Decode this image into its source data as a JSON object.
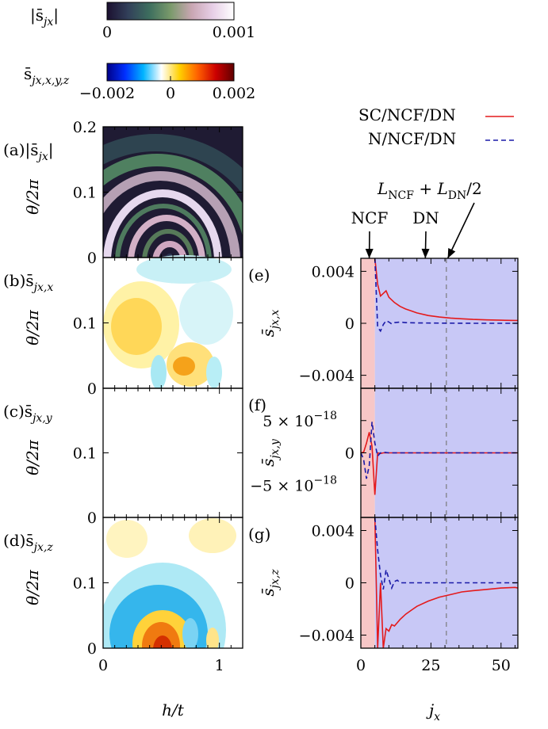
{
  "colorbars": [
    {
      "label": "|s̄",
      "label_sub": "jx",
      "label_close": "|",
      "ticks": [
        {
          "value": 0,
          "label": "0"
        },
        {
          "value": 0.001,
          "label": "0.001"
        }
      ],
      "range": [
        0,
        0.001
      ],
      "colors": [
        "#1b1030",
        "#32405a",
        "#3d6e5e",
        "#7a9a6b",
        "#c9a6b2",
        "#e7cfe7",
        "#ffffff"
      ]
    },
    {
      "label": "s̄",
      "label_sub": "jx,x,y,z",
      "ticks": [
        {
          "value": -0.002,
          "label": "−0.002"
        },
        {
          "value": 0,
          "label": "0"
        },
        {
          "value": 0.002,
          "label": "0.002"
        }
      ],
      "range": [
        -0.002,
        0.002
      ],
      "colors": [
        "#000088",
        "#0030ff",
        "#00b4ff",
        "#ffffff",
        "#ffd000",
        "#ff6000",
        "#cc0000",
        "#600000"
      ]
    }
  ],
  "heatmaps": {
    "xlabel": "h/t",
    "ylabel": "θ/2π",
    "x_ticks": [
      {
        "value": 0,
        "label": "0"
      },
      {
        "value": 1,
        "label": "1"
      }
    ],
    "xlim": [
      0,
      1.2
    ],
    "ylim": [
      0,
      0.2
    ],
    "panels": [
      {
        "id": "a",
        "tag": "(a)",
        "label": "|s̄",
        "sub": "jx",
        "close": "|",
        "y_ticks": [
          {
            "value": 0,
            "label": "0"
          },
          {
            "value": 0.1,
            "label": "0.1"
          },
          {
            "value": 0.2,
            "label": "0.2"
          }
        ]
      },
      {
        "id": "b",
        "tag": "(b)",
        "label": "s̄",
        "sub": "jx,x",
        "close": "",
        "y_ticks": [
          {
            "value": 0,
            "label": "0"
          },
          {
            "value": 0.1,
            "label": "0.1"
          }
        ]
      },
      {
        "id": "c",
        "tag": "(c)",
        "label": "s̄",
        "sub": "jx,y",
        "close": "",
        "y_ticks": [
          {
            "value": 0,
            "label": "0"
          },
          {
            "value": 0.1,
            "label": "0.1"
          }
        ]
      },
      {
        "id": "d",
        "tag": "(d)",
        "label": "s̄",
        "sub": "jx,z",
        "close": "",
        "y_ticks": [
          {
            "value": 0,
            "label": "0"
          },
          {
            "value": 0.1,
            "label": "0.1"
          }
        ]
      }
    ]
  },
  "chart_data": [
    {
      "type": "heatmap",
      "panel": "(a)",
      "description_in_units": "|s_jx| over h/t in [0,1.2] and θ/2π in [0,0.2]",
      "xlim": [
        0,
        1.2
      ],
      "ylim": [
        0,
        0.2
      ],
      "zlim": [
        0,
        0.001
      ]
    },
    {
      "type": "line",
      "panels": [
        "(e)",
        "(f)",
        "(g)"
      ],
      "xlabel": "jx",
      "xlim": [
        0,
        56
      ],
      "x_ticks": [
        {
          "value": 0,
          "label": "0"
        },
        {
          "value": 25,
          "label": "25"
        },
        {
          "value": 50,
          "label": "50"
        }
      ],
      "legend": {
        "placement": "top-right",
        "entries": [
          {
            "name": "SC/NCF/DN",
            "color": "#e41a1c",
            "dash": "solid"
          },
          {
            "name": "N/NCF/DN",
            "color": "#1a1aa8",
            "dash": "dashed"
          }
        ]
      },
      "regions": [
        {
          "name": "NCF",
          "x": [
            0,
            5
          ],
          "color": "#f7c7c7"
        },
        {
          "name": "DN",
          "x": [
            5,
            56
          ],
          "color": "#c8c8f6"
        }
      ],
      "annotations": [
        {
          "text": "NCF",
          "x": 3,
          "y_note": "arrow to top of panel e"
        },
        {
          "text": "DN",
          "x": 23,
          "y_note": "arrow to top of panel e"
        },
        {
          "text": "L",
          "sub1": "NCF",
          "mid": " + L",
          "sub2": "DN",
          "tail": "/2",
          "x": 31
        }
      ],
      "vline": 30.5,
      "subplots": [
        {
          "tag": "(e)",
          "ylabel": "s̄",
          "ysub": "jx,x",
          "ylim": [
            -0.005,
            0.005
          ],
          "y_ticks": [
            {
              "value": 0.004,
              "label": "0.004"
            },
            {
              "value": 0,
              "label": "0"
            },
            {
              "value": -0.004,
              "label": "−0.004"
            }
          ],
          "series": [
            {
              "name": "SC/NCF/DN",
              "x": [
                5,
                6,
                7,
                8,
                9,
                10,
                12,
                14,
                16,
                18,
                20,
                24,
                28,
                32,
                36,
                40,
                45,
                50,
                55,
                56
              ],
              "y": [
                0.005,
                0.003,
                0.0021,
                0.0023,
                0.0025,
                0.002,
                0.0016,
                0.0013,
                0.0011,
                0.00095,
                0.0008,
                0.0006,
                0.00048,
                0.0004,
                0.00035,
                0.0003,
                0.00026,
                0.00024,
                0.00022,
                0.00022
              ]
            },
            {
              "name": "N/NCF/DN",
              "x": [
                5,
                6,
                7,
                8,
                9,
                10,
                11,
                12,
                14,
                16,
                20,
                25,
                30,
                40,
                50,
                56
              ],
              "y": [
                0.005,
                -0.0003,
                -0.0006,
                -0.0001,
                0.0002,
                0.0001,
                -5e-05,
                5e-05,
                0.0001,
                5e-05,
                3e-05,
                2e-05,
                1e-05,
                0.0,
                0.0,
                0.0
              ]
            }
          ]
        },
        {
          "tag": "(f)",
          "ylabel": "s̄",
          "ysub": "jx,y",
          "ylim": [
            -1e-17,
            1e-17
          ],
          "y_ticks": [
            {
              "value": 5e-18,
              "label": "5 × 10",
              "exp": "−18"
            },
            {
              "value": 0,
              "label": "0"
            },
            {
              "value": -5e-18,
              "label": "−5 × 10",
              "exp": "−18"
            }
          ],
          "series": [
            {
              "name": "SC/NCF/DN",
              "x": [
                0,
                1,
                2,
                3,
                4,
                5,
                6,
                7,
                8,
                10,
                15,
                20,
                30,
                40,
                50,
                56
              ],
              "y": [
                0,
                1e-19,
                1.5e-18,
                3.2e-18,
                1e-18,
                -6.5e-18,
                0,
                -1e-19,
                0,
                0,
                0,
                0,
                0,
                0,
                0,
                0
              ]
            },
            {
              "name": "N/NCF/DN",
              "x": [
                0,
                1,
                2,
                3,
                4,
                5,
                6,
                7,
                8,
                10,
                15,
                20,
                30,
                40,
                50,
                56
              ],
              "y": [
                0,
                -1e-18,
                -4e-18,
                -2e-18,
                4.8e-18,
                1.5e-18,
                -5e-19,
                0,
                1e-19,
                0,
                0,
                0,
                0,
                0,
                0,
                0
              ]
            }
          ]
        },
        {
          "tag": "(g)",
          "ylabel": "s̄",
          "ysub": "jx,z",
          "ylim": [
            -0.005,
            0.005
          ],
          "y_ticks": [
            {
              "value": 0.004,
              "label": "0.004"
            },
            {
              "value": 0,
              "label": "0"
            },
            {
              "value": -0.004,
              "label": "−0.004"
            }
          ],
          "series": [
            {
              "name": "SC/NCF/DN",
              "x": [
                5,
                6,
                7,
                8,
                9,
                10,
                11,
                12,
                14,
                16,
                18,
                20,
                24,
                28,
                32,
                36,
                40,
                45,
                50,
                55,
                56
              ],
              "y": [
                0.005,
                -0.005,
                0.0,
                -0.005,
                -0.0035,
                -0.0037,
                -0.0032,
                -0.0033,
                -0.0028,
                -0.0024,
                -0.0021,
                -0.0018,
                -0.0014,
                -0.0011,
                -0.0009,
                -0.0007,
                -0.0006,
                -0.0005,
                -0.0004,
                -0.00035,
                -0.0004
              ]
            },
            {
              "name": "N/NCF/DN",
              "x": [
                5,
                6,
                7,
                8,
                9,
                10,
                11,
                12,
                13,
                14,
                16,
                20,
                25,
                30,
                40,
                50,
                56
              ],
              "y": [
                0.005,
                0.0025,
                0.0006,
                -0.0005,
                0.001,
                0.0003,
                -0.0004,
                0.0001,
                0.0002,
                0.0,
                0.0,
                0.0,
                0.0,
                0.0,
                0.0,
                0.0,
                0.0
              ]
            }
          ]
        }
      ]
    }
  ]
}
